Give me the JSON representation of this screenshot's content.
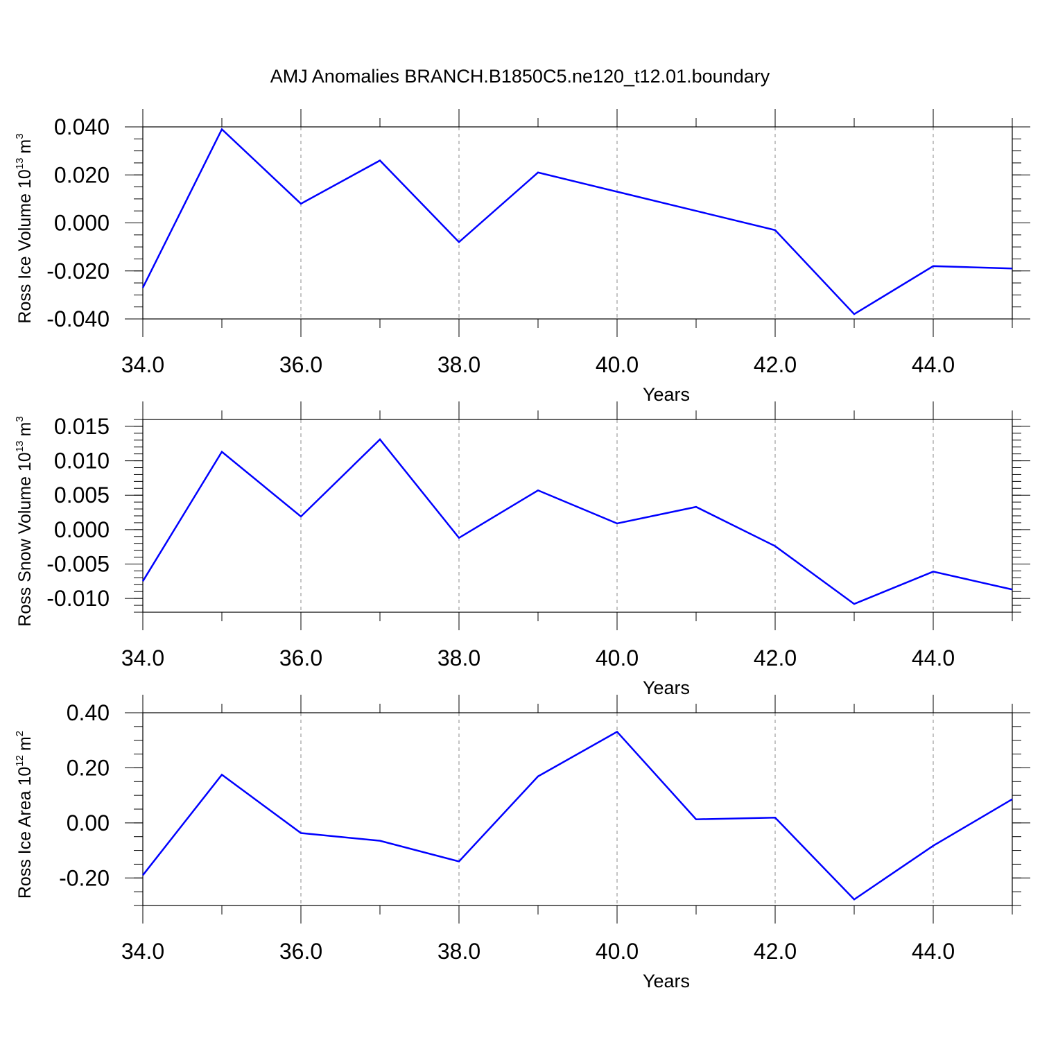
{
  "figure": {
    "title": "AMJ Anomalies BRANCH.B1850C5.ne120_t12.01.boundary",
    "line_color": "#0000ff"
  },
  "chart_data": [
    {
      "type": "line",
      "xlabel": "Years",
      "ylabel": {
        "text": "Ross Ice Volume 10",
        "exp": "13",
        "unit": "m",
        "unit_exp": "3"
      },
      "xlim": [
        34,
        45
      ],
      "ylim": [
        -0.04,
        0.04
      ],
      "x_ticks": [
        34,
        36,
        38,
        40,
        42,
        44
      ],
      "x_tick_labels": [
        "34.0",
        "36.0",
        "38.0",
        "40.0",
        "42.0",
        "44.0"
      ],
      "y_ticks": [
        0.04,
        0.02,
        0.0,
        -0.02,
        -0.04
      ],
      "y_tick_labels": [
        "0.040",
        "0.020",
        "0.000",
        "-0.020",
        "-0.040"
      ],
      "y_minor_step": 0.005,
      "grid": "vertical dashed at major x ticks",
      "series": [
        {
          "x": [
            34,
            35,
            36,
            37,
            38,
            39,
            40,
            41,
            42,
            43,
            44,
            45
          ],
          "values": [
            -0.027,
            0.039,
            0.008,
            0.026,
            -0.008,
            0.021,
            0.013,
            0.005,
            -0.003,
            -0.038,
            -0.018,
            -0.019
          ]
        }
      ]
    },
    {
      "type": "line",
      "xlabel": "Years",
      "ylabel": {
        "text": "Ross Snow Volume 10",
        "exp": "13",
        "unit": "m",
        "unit_exp": "3"
      },
      "xlim": [
        34,
        45
      ],
      "ylim": [
        -0.012,
        0.016
      ],
      "x_ticks": [
        34,
        36,
        38,
        40,
        42,
        44
      ],
      "x_tick_labels": [
        "34.0",
        "36.0",
        "38.0",
        "40.0",
        "42.0",
        "44.0"
      ],
      "y_ticks": [
        0.015,
        0.01,
        0.005,
        0.0,
        -0.005,
        -0.01
      ],
      "y_tick_labels": [
        "0.015",
        "0.010",
        "0.005",
        "0.000",
        "-0.005",
        "-0.010"
      ],
      "y_minor_step": 0.001,
      "grid": "vertical dashed at major x ticks",
      "series": [
        {
          "x": [
            34,
            35,
            36,
            37,
            38,
            39,
            40,
            41,
            42,
            43,
            44,
            45
          ],
          "values": [
            -0.0075,
            0.0113,
            0.0019,
            0.0131,
            -0.0012,
            0.0057,
            0.0009,
            0.0033,
            -0.0024,
            -0.0108,
            -0.0061,
            -0.0087
          ]
        }
      ]
    },
    {
      "type": "line",
      "xlabel": "Years",
      "ylabel": {
        "text": "Ross Ice Area 10",
        "exp": "12",
        "unit": "m",
        "unit_exp": "2"
      },
      "xlim": [
        34,
        45
      ],
      "ylim": [
        -0.3,
        0.4
      ],
      "x_ticks": [
        34,
        36,
        38,
        40,
        42,
        44
      ],
      "x_tick_labels": [
        "34.0",
        "36.0",
        "38.0",
        "40.0",
        "42.0",
        "44.0"
      ],
      "y_ticks": [
        0.4,
        0.2,
        0.0,
        -0.2
      ],
      "y_tick_labels": [
        "0.40",
        "0.20",
        "0.00",
        "-0.20"
      ],
      "y_minor_step": 0.05,
      "grid": "vertical dashed at major x ticks",
      "series": [
        {
          "x": [
            34,
            35,
            36,
            37,
            38,
            39,
            40,
            41,
            42,
            43,
            44,
            45
          ],
          "values": [
            -0.19,
            0.175,
            -0.037,
            -0.065,
            -0.14,
            0.169,
            0.331,
            0.013,
            0.019,
            -0.278,
            -0.083,
            0.086
          ]
        }
      ]
    }
  ]
}
